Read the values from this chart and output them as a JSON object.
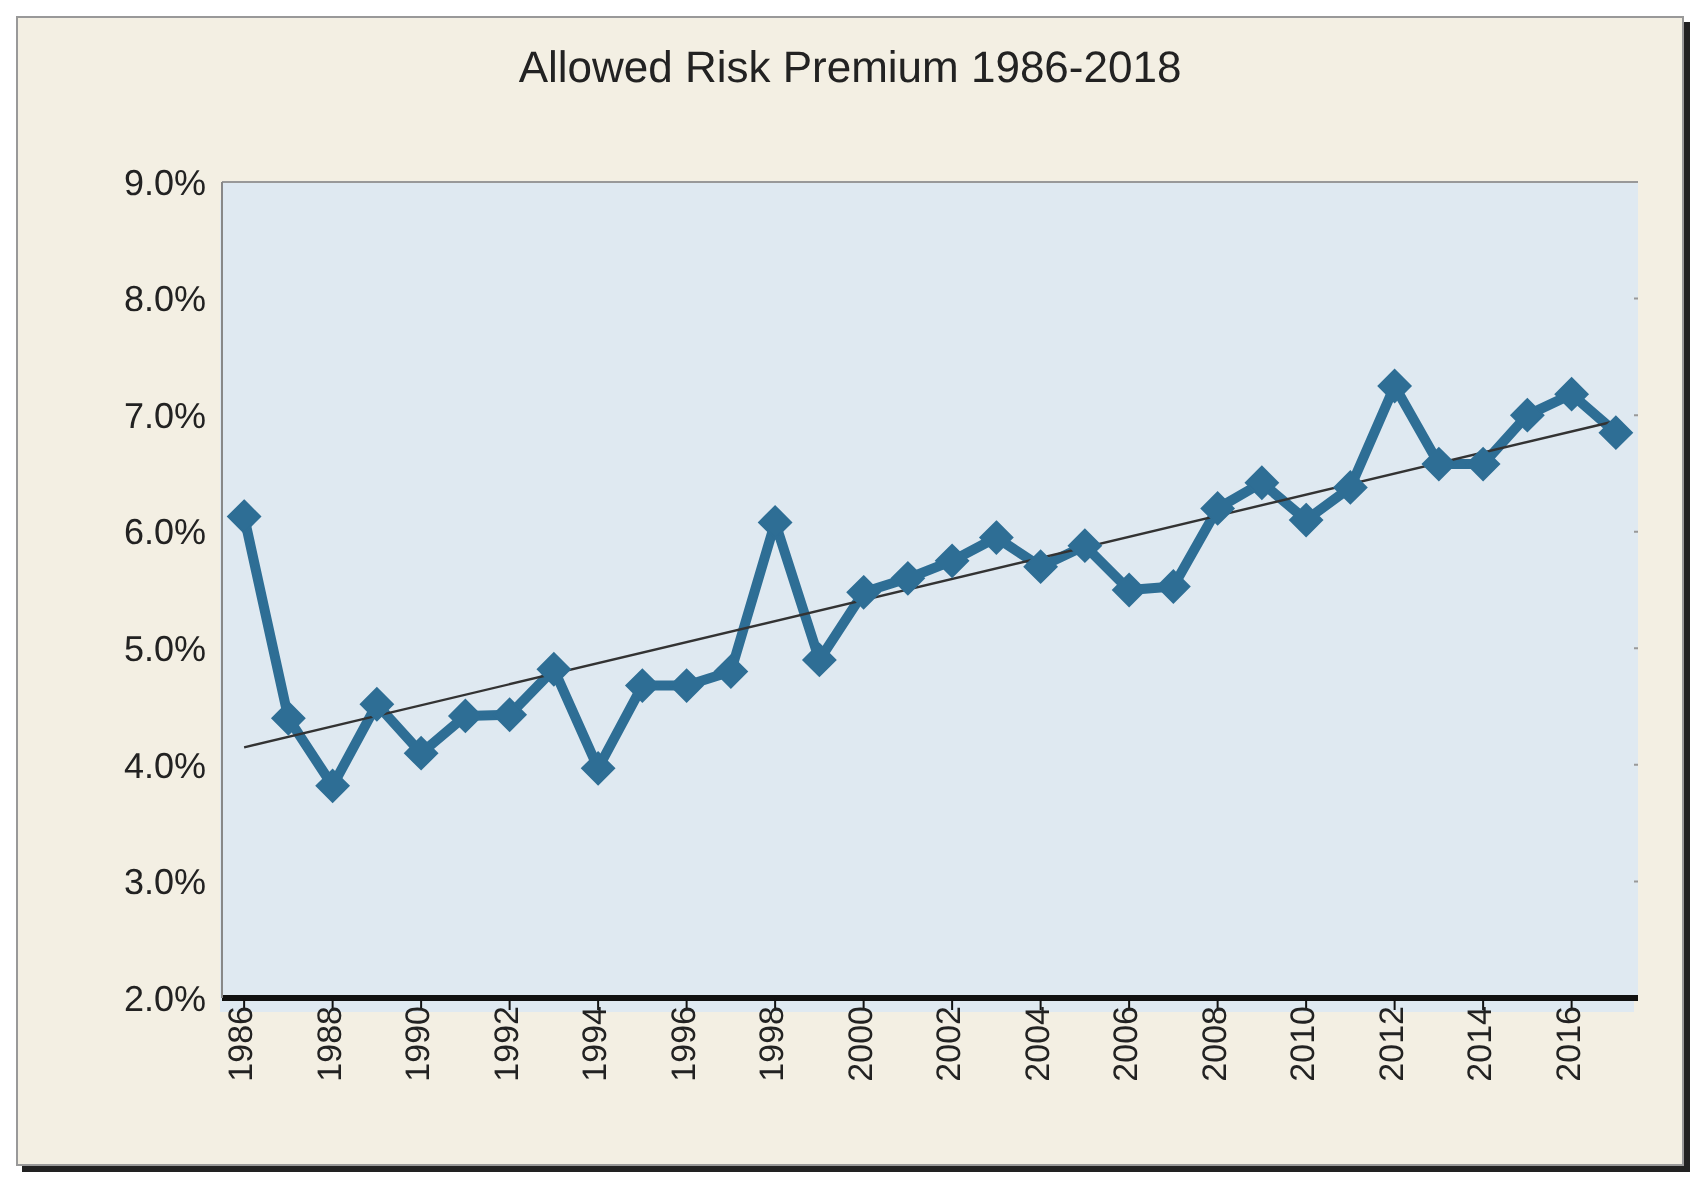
{
  "chart_data": {
    "type": "line",
    "title": "Allowed Risk Premium 1986-2018",
    "x": [
      1986,
      1987,
      1988,
      1989,
      1990,
      1991,
      1992,
      1993,
      1994,
      1995,
      1996,
      1997,
      1998,
      1999,
      2000,
      2001,
      2002,
      2003,
      2004,
      2005,
      2006,
      2007,
      2008,
      2009,
      2010,
      2011,
      2012,
      2013,
      2014,
      2015,
      2016,
      2017
    ],
    "series": [
      {
        "color": "#2e6e95",
        "marker": "diamond",
        "values": [
          6.13,
          4.4,
          3.82,
          4.52,
          4.1,
          4.42,
          4.43,
          4.82,
          3.97,
          4.68,
          4.68,
          4.8,
          6.08,
          4.9,
          5.48,
          5.6,
          5.75,
          5.95,
          5.7,
          5.88,
          5.5,
          5.53,
          6.2,
          6.42,
          6.1,
          6.38,
          7.25,
          6.58,
          6.58,
          7.0,
          7.18,
          6.85
        ]
      },
      {
        "type": "line",
        "color": "#333333",
        "marker": "none",
        "x": [
          1986,
          2017
        ],
        "values": [
          4.15,
          6.95
        ]
      }
    ],
    "xlim": [
      1985.5,
      2017.5
    ],
    "xticks": [
      1986,
      1988,
      1990,
      1992,
      1994,
      1996,
      1998,
      2000,
      2002,
      2004,
      2006,
      2008,
      2010,
      2012,
      2014,
      2016
    ],
    "ylim": [
      2,
      9
    ],
    "yticks": [
      {
        "value": 2,
        "label": "2.0%"
      },
      {
        "value": 3,
        "label": "3.0%"
      },
      {
        "value": 4,
        "label": "4.0%"
      },
      {
        "value": 5,
        "label": "5.0%"
      },
      {
        "value": 6,
        "label": "6.0%"
      },
      {
        "value": 7,
        "label": "7.0%"
      },
      {
        "value": 8,
        "label": "8.0%"
      },
      {
        "value": 9,
        "label": "9.0%"
      }
    ],
    "grid": "y",
    "legend": false
  }
}
